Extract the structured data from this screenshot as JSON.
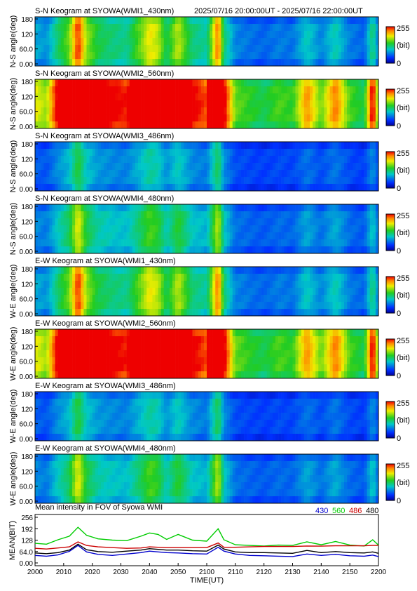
{
  "header": {
    "time_range": "2025/07/16 20:00:00UT - 2025/07/16 22:00:00UT"
  },
  "panels": [
    {
      "title": "S-N Keogram at SYOWA(WMI1_430nm)",
      "ylabel": "N-S angle(deg)",
      "peak": 0.45
    },
    {
      "title": "S-N Keogram at SYOWA(WMI2_560nm)",
      "ylabel": "N-S angle(deg)",
      "peak": 1.0
    },
    {
      "title": "S-N Keogram at SYOWA(WMI3_486nm)",
      "ylabel": "N-S angle(deg)",
      "peak": 0.22
    },
    {
      "title": "S-N Keogram at SYOWA(WMI4_480nm)",
      "ylabel": "N-S angle(deg)",
      "peak": 0.32
    },
    {
      "title": "E-W Keogram at SYOWA(WMI1_430nm)",
      "ylabel": "W-E angle(deg)",
      "peak": 0.45
    },
    {
      "title": "E-W Keogram at SYOWA(WMI2_560nm)",
      "ylabel": "W-E angle(deg)",
      "peak": 1.0
    },
    {
      "title": "E-W Keogram at SYOWA(WMI3_486nm)",
      "ylabel": "W-E angle(deg)",
      "peak": 0.22
    },
    {
      "title": "E-W Keogram at SYOWA(WMI4_480nm)",
      "ylabel": "W-E angle(deg)",
      "peak": 0.32
    }
  ],
  "keogram_axis": {
    "yticks": [
      "180",
      "120",
      "60.0",
      "0.00"
    ],
    "colorbar_max": "255",
    "colorbar_unit": "(bit)",
    "colorbar_min": "0"
  },
  "chart_data": {
    "type": "line",
    "title": "Mean intensity in FOV of Syowa WMI",
    "xlabel": "TIME(UT)",
    "ylabel": "MEAN(BIT)",
    "xlim": [
      0,
      120
    ],
    "ylim": [
      0,
      256
    ],
    "xticks": [
      "2000",
      "2010",
      "2020",
      "2030",
      "2040",
      "2050",
      "2100",
      "2110",
      "2120",
      "2130",
      "2140",
      "2150",
      "2200"
    ],
    "yticks": [
      "256",
      "192",
      "128",
      "64.0",
      "0.00"
    ],
    "x": [
      0,
      4,
      8,
      12,
      15,
      18,
      22,
      27,
      32,
      37,
      40,
      43,
      46,
      50,
      55,
      60,
      64,
      66,
      70,
      75,
      80,
      85,
      90,
      95,
      100,
      105,
      110,
      115,
      118,
      120
    ],
    "series": [
      {
        "name": "430",
        "color": "#0000cc",
        "values": [
          42,
          38,
          45,
          65,
          98,
          62,
          48,
          42,
          50,
          58,
          66,
          62,
          58,
          56,
          52,
          50,
          88,
          66,
          50,
          42,
          40,
          38,
          36,
          50,
          42,
          48,
          40,
          38,
          44,
          36
        ]
      },
      {
        "name": "560",
        "color": "#00cc00",
        "values": [
          110,
          105,
          130,
          150,
          200,
          155,
          135,
          128,
          125,
          150,
          168,
          160,
          132,
          160,
          128,
          122,
          192,
          130,
          102,
          98,
          95,
          100,
          98,
          118,
          102,
          120,
          100,
          95,
          130,
          100
        ]
      },
      {
        "name": "486",
        "color": "#cc0000",
        "values": [
          82,
          78,
          84,
          90,
          118,
          98,
          90,
          86,
          82,
          84,
          90,
          88,
          86,
          86,
          86,
          86,
          112,
          88,
          88,
          90,
          92,
          92,
          92,
          95,
          94,
          96,
          96,
          96,
          98,
          98
        ]
      },
      {
        "name": "480",
        "color": "#000000",
        "values": [
          56,
          52,
          58,
          72,
          105,
          74,
          64,
          60,
          66,
          72,
          80,
          76,
          72,
          72,
          68,
          66,
          100,
          78,
          62,
          58,
          58,
          56,
          54,
          70,
          58,
          64,
          58,
          56,
          62,
          54
        ]
      }
    ]
  }
}
